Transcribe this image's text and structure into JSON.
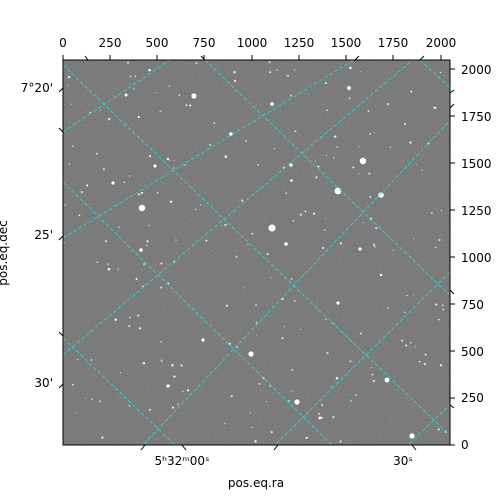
{
  "figure": {
    "image_background": "#6e6e6e",
    "grid_color": "#2fd4d4",
    "frame_color": "#000000",
    "star_color": "#ffffff"
  },
  "axes": {
    "pixel_x": {
      "ticks": [
        "0",
        "250",
        "500",
        "750",
        "1000",
        "1250",
        "1500",
        "1750",
        "2000"
      ],
      "range": [
        0,
        2048
      ]
    },
    "pixel_y": {
      "ticks": [
        "0",
        "250",
        "500",
        "750",
        "1000",
        "1250",
        "1500",
        "1750",
        "2000"
      ],
      "range": [
        0,
        2048
      ]
    },
    "ra": {
      "label": "pos.eq.ra",
      "ticks": [
        "5ʰ32ᵐ00ˢ",
        "30ˢ"
      ]
    },
    "dec": {
      "label": "pos.eq.dec",
      "ticks": [
        "7°20'",
        "25'",
        "30'"
      ]
    }
  }
}
